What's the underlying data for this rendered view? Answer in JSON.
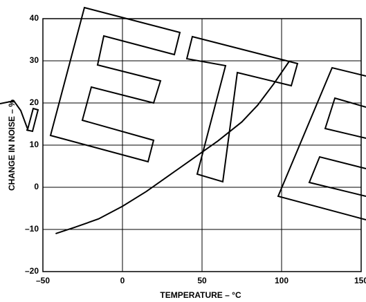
{
  "chart_data": {
    "type": "line",
    "xlabel": "TEMPERATURE – °C",
    "ylabel": "CHANGE IN NOISE – %",
    "x": [
      -42,
      -30,
      -15,
      0,
      15,
      30,
      45,
      60,
      75,
      85,
      95,
      105
    ],
    "series": [
      {
        "color": "#000000",
        "values": [
          -11,
          -9.5,
          -7.5,
          -4.5,
          -1,
          3,
          7,
          11,
          15.5,
          19.5,
          24.5,
          30
        ]
      }
    ],
    "xlim": [
      -50,
      150
    ],
    "ylim": [
      -20,
      40
    ],
    "xticks": [
      {
        "value": -50,
        "label": "–50"
      },
      0,
      50,
      100,
      150
    ],
    "yticks": [
      {
        "value": -20,
        "label": "–20"
      },
      {
        "value": -10,
        "label": "–10"
      },
      0,
      10,
      20,
      30,
      40
    ],
    "grid": true
  }
}
